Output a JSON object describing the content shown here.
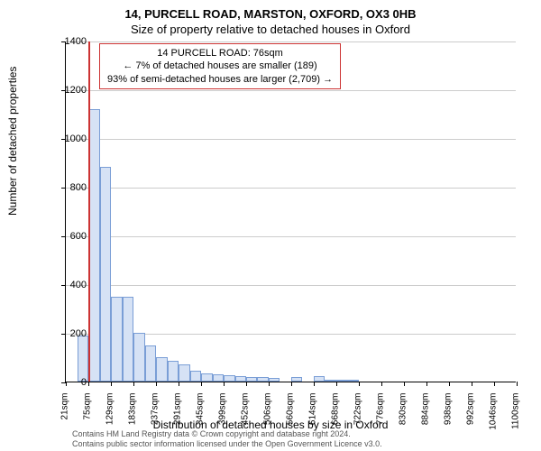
{
  "title_line1": "14, PURCELL ROAD, MARSTON, OXFORD, OX3 0HB",
  "title_line2": "Size of property relative to detached houses in Oxford",
  "annotation": {
    "line1": "14 PURCELL ROAD: 76sqm",
    "line2": "← 7% of detached houses are smaller (189)",
    "line3": "93% of semi-detached houses are larger (2,709) →",
    "border_color": "#cc3333",
    "bg_color": "#ffffff",
    "fontsize": 11
  },
  "chart": {
    "type": "histogram",
    "ylim": [
      0,
      1400
    ],
    "ytick_step": 200,
    "yticks": [
      0,
      200,
      400,
      600,
      800,
      1000,
      1200,
      1400
    ],
    "xticks": [
      "21sqm",
      "75sqm",
      "129sqm",
      "183sqm",
      "237sqm",
      "291sqm",
      "345sqm",
      "399sqm",
      "452sqm",
      "506sqm",
      "560sqm",
      "614sqm",
      "668sqm",
      "722sqm",
      "776sqm",
      "830sqm",
      "884sqm",
      "938sqm",
      "992sqm",
      "1046sqm",
      "1100sqm"
    ],
    "x_min": 21,
    "x_max": 1100,
    "bin_width": 27,
    "bars": [
      {
        "x_start": 48,
        "value": 190
      },
      {
        "x_start": 75,
        "value": 1120
      },
      {
        "x_start": 102,
        "value": 880
      },
      {
        "x_start": 129,
        "value": 350
      },
      {
        "x_start": 156,
        "value": 350
      },
      {
        "x_start": 183,
        "value": 200
      },
      {
        "x_start": 210,
        "value": 150
      },
      {
        "x_start": 237,
        "value": 100
      },
      {
        "x_start": 264,
        "value": 85
      },
      {
        "x_start": 291,
        "value": 70
      },
      {
        "x_start": 318,
        "value": 45
      },
      {
        "x_start": 345,
        "value": 35
      },
      {
        "x_start": 372,
        "value": 30
      },
      {
        "x_start": 399,
        "value": 25
      },
      {
        "x_start": 426,
        "value": 22
      },
      {
        "x_start": 452,
        "value": 18
      },
      {
        "x_start": 479,
        "value": 18
      },
      {
        "x_start": 506,
        "value": 15
      },
      {
        "x_start": 560,
        "value": 20
      },
      {
        "x_start": 614,
        "value": 22
      },
      {
        "x_start": 641,
        "value": 8
      },
      {
        "x_start": 668,
        "value": 8
      },
      {
        "x_start": 695,
        "value": 8
      }
    ],
    "marker_x": 76,
    "marker_color": "#cc3333",
    "bar_fill": "#d6e2f5",
    "bar_border": "#7a9ed6",
    "grid_color": "#cccccc",
    "background_color": "#ffffff",
    "ylabel": "Number of detached properties",
    "xlabel": "Distribution of detached houses by size in Oxford",
    "label_fontsize": 12,
    "tick_fontsize": 10
  },
  "footer": {
    "line1": "Contains HM Land Registry data © Crown copyright and database right 2024.",
    "line2": "Contains public sector information licensed under the Open Government Licence v3.0."
  }
}
